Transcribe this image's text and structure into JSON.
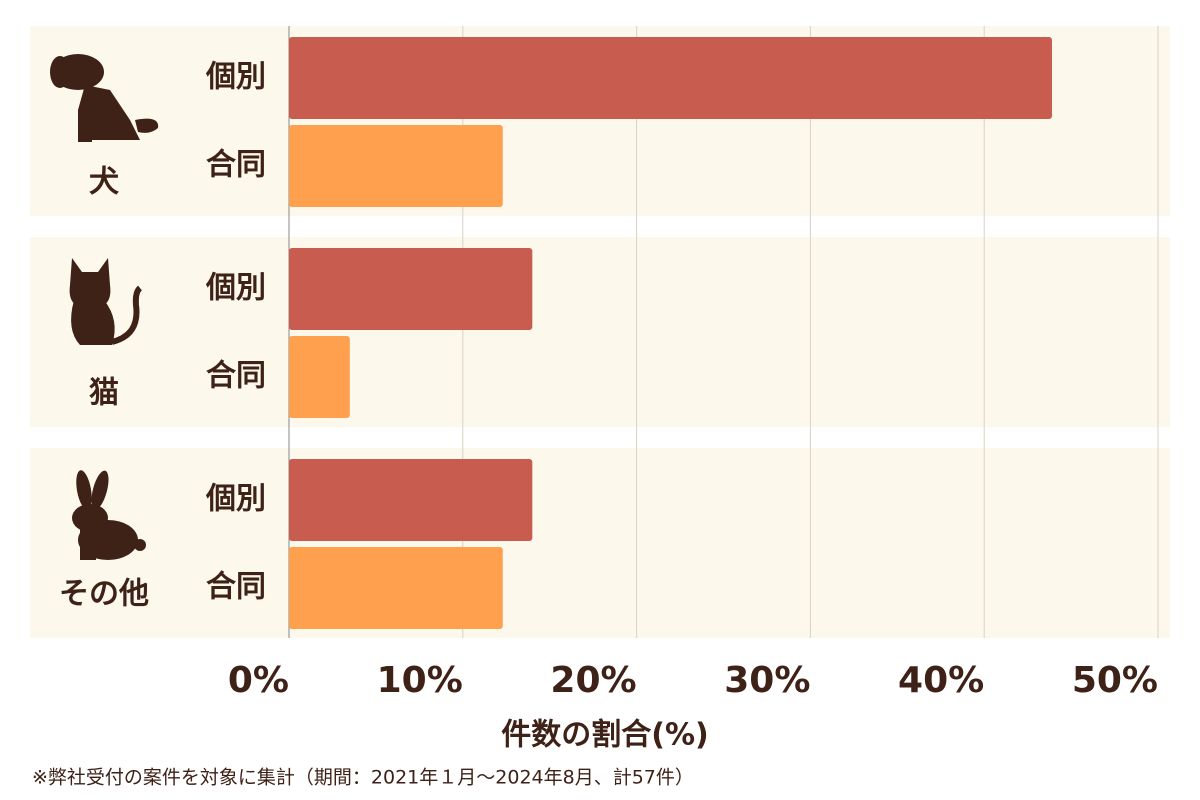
{
  "chart_data": {
    "type": "bar",
    "orientation": "horizontal",
    "categories": [
      "犬",
      "猫",
      "その他"
    ],
    "series": [
      {
        "name": "個別",
        "color": "#c75c4f",
        "values": [
          43.9,
          14.0,
          14.0
        ]
      },
      {
        "name": "合同",
        "color": "#ffa04f",
        "values": [
          12.3,
          3.5,
          12.3
        ]
      }
    ],
    "xlim": [
      0,
      50
    ],
    "xticks": [
      {
        "value": 0,
        "label": "0%"
      },
      {
        "value": 10,
        "label": "10%"
      },
      {
        "value": 20,
        "label": "20%"
      },
      {
        "value": 30,
        "label": "30%"
      },
      {
        "value": 40,
        "label": "40%"
      },
      {
        "value": 50,
        "label": "50%"
      }
    ],
    "xlabel": "件数の割合(%)",
    "grid": true,
    "note": "※弊社受付の案件を対象に集計（期間：2021年１月〜2024年8月、計57件）"
  }
}
